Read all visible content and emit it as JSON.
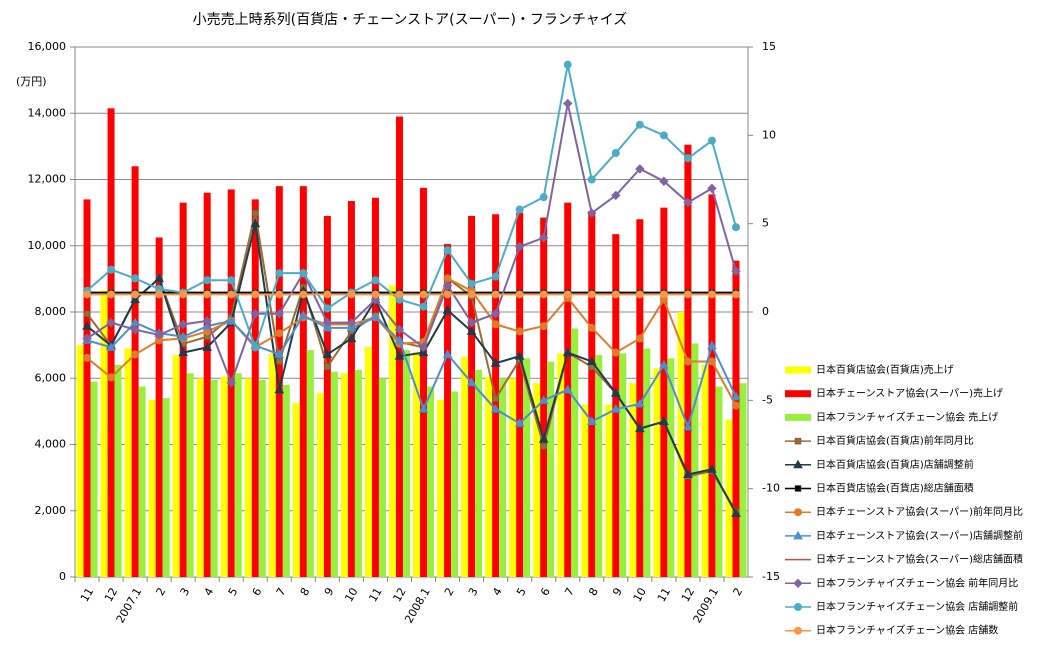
{
  "chart_data": {
    "type": "combo",
    "title": "小売売上時系列(百貨店・チェーンストア(スーパー)・フランチャイズ",
    "y_label": "(万円)",
    "categories": [
      "11",
      "12",
      "2007.1",
      "2",
      "3",
      "4",
      "5",
      "6",
      "7",
      "8",
      "9",
      "10",
      "11",
      "12",
      "2008.1",
      "2",
      "3",
      "4",
      "5",
      "6",
      "7",
      "8",
      "9",
      "10",
      "11",
      "12",
      "2009.1",
      "2"
    ],
    "ylim": [
      0,
      16000
    ],
    "yticks": [
      {
        "value": 0,
        "label": "0"
      },
      {
        "value": 2000,
        "label": "2,000"
      },
      {
        "value": 4000,
        "label": "4,000"
      },
      {
        "value": 6000,
        "label": "6,000"
      },
      {
        "value": 8000,
        "label": "8,000"
      },
      {
        "value": 10000,
        "label": "10,000"
      },
      {
        "value": 12000,
        "label": "12,000"
      },
      {
        "value": 14000,
        "label": "14,000"
      },
      {
        "value": 16000,
        "label": "16,000"
      }
    ],
    "y2lim": [
      -15,
      15
    ],
    "y2ticks": [
      -15,
      -10,
      -5,
      0,
      5,
      10,
      15
    ],
    "grid": true,
    "legend": "right",
    "series": [
      {
        "name": "日本百貨店協会(百貨店)売上げ",
        "type": "bar",
        "color": "#ffff00",
        "values": [
          7000,
          8650,
          6900,
          5350,
          6700,
          6000,
          6050,
          6000,
          6750,
          5250,
          5550,
          6150,
          6950,
          8800,
          6800,
          5350,
          6650,
          6050,
          6000,
          5850,
          6750,
          5200,
          5200,
          5850,
          6300,
          8000,
          6400,
          4750
        ]
      },
      {
        "name": "日本チェーンストア協会(スーパー)売上げ",
        "type": "bar",
        "color": "#ff0000",
        "values": [
          11400,
          14150,
          12400,
          10250,
          11300,
          11600,
          11700,
          11400,
          11800,
          11800,
          10900,
          11350,
          11450,
          13900,
          11750,
          10050,
          10900,
          10950,
          11000,
          10850,
          11300,
          11050,
          10350,
          10800,
          11150,
          13050,
          11550,
          9550
        ]
      },
      {
        "name": "日本フランチャイズチェーン協会 売上げ",
        "type": "bar",
        "color": "#99f03c",
        "values": [
          5900,
          6400,
          5750,
          5400,
          6150,
          5950,
          6150,
          5950,
          5800,
          6850,
          6200,
          6250,
          6000,
          6850,
          5750,
          5600,
          6250,
          6000,
          6600,
          6500,
          7500,
          6700,
          6750,
          6900,
          6600,
          7050,
          5750,
          5850
        ]
      },
      {
        "name": "日本百貨店協会(百貨店)前年同月比",
        "type": "line",
        "axis": "y2",
        "color": "#9c6b30",
        "marker": "square",
        "values": [
          -0.1,
          -1.9,
          0.7,
          1.9,
          -1.8,
          -1.4,
          -0.3,
          5.6,
          -2.8,
          1.4,
          -3.1,
          -1.1,
          -0.2,
          -1.7,
          -2.0,
          1.9,
          0.9,
          -4.9,
          -2.7,
          -7.6,
          -2.3,
          -3.1,
          -4.6,
          -6.6,
          -6.2,
          -9.3,
          -9.0,
          -11.3
        ]
      },
      {
        "name": "日本百貨店協会(百貨店)店舗調整前",
        "type": "line",
        "axis": "y2",
        "color": "#1f3b4d",
        "marker": "triangle",
        "values": [
          -0.8,
          -1.9,
          0.7,
          1.9,
          -2.3,
          -2.0,
          -0.6,
          5.0,
          -4.4,
          1.2,
          -2.4,
          -1.5,
          0.7,
          -2.5,
          -2.3,
          0.1,
          -1.1,
          -2.9,
          -2.5,
          -7.2,
          -2.3,
          -2.8,
          -4.6,
          -6.6,
          -6.2,
          -9.2,
          -8.9,
          -11.4
        ]
      },
      {
        "name": "日本百貨店協会(百貨店)総店舗面積",
        "type": "line",
        "axis": "y2",
        "color": "#000000",
        "marker": "square",
        "values": [
          1.1,
          1.1,
          1.1,
          1.1,
          1.1,
          1.1,
          1.1,
          1.1,
          1.1,
          1.1,
          1.1,
          1.1,
          1.1,
          1.1,
          1.1,
          1.1,
          1.1,
          1.1,
          1.1,
          1.1,
          1.1,
          1.1,
          1.1,
          1.1,
          1.1,
          1.1,
          1.1,
          1.1
        ]
      },
      {
        "name": "日本チェーンストア協会(スーパー)前年同月比",
        "type": "line",
        "axis": "y2",
        "color": "#e07b2a",
        "marker": "circle",
        "values": [
          -2.6,
          -3.7,
          -2.4,
          -1.6,
          -1.5,
          -1.1,
          -0.5,
          -2.0,
          -1.2,
          -0.3,
          -0.7,
          -0.7,
          -0.3,
          -1.8,
          -1.7,
          1.9,
          1.2,
          -0.7,
          -1.1,
          -0.8,
          0.8,
          -0.9,
          -2.3,
          -1.5,
          0.7,
          -2.8,
          -2.8,
          -5.3
        ]
      },
      {
        "name": "日本チェーンストア協会(スーパー)店舗調整前",
        "type": "line",
        "axis": "y2",
        "color": "#4a8fd0",
        "marker": "triangle",
        "values": [
          -1.6,
          -2.0,
          -0.6,
          -1.2,
          -1.4,
          -0.8,
          -0.5,
          -1.9,
          -2.4,
          -0.2,
          -0.9,
          -0.9,
          -0.3,
          -1.6,
          -5.5,
          -2.4,
          -4.0,
          -5.5,
          -6.3,
          -5.0,
          -4.4,
          -6.2,
          -5.5,
          -5.2,
          -3.0,
          -6.5,
          -1.9,
          -4.8
        ]
      },
      {
        "name": "日本チェーンストア協会(スーパー)総店舗面積",
        "type": "line",
        "axis": "y2",
        "color": "#c0504d",
        "marker": "none",
        "values": [
          1.0,
          1.0,
          1.0,
          1.0,
          1.0,
          1.0,
          1.0,
          1.0,
          1.0,
          1.0,
          1.0,
          1.0,
          1.0,
          1.0,
          1.0,
          1.0,
          1.0,
          1.0,
          1.0,
          1.0,
          1.0,
          1.0,
          1.0,
          1.0,
          1.0,
          1.0,
          1.0,
          1.0
        ]
      },
      {
        "name": "日本フランチャイズチェーン協会 前年同月比",
        "type": "line",
        "axis": "y2",
        "color": "#8064a2",
        "marker": "diamond",
        "values": [
          -1.5,
          -0.6,
          -1.0,
          -1.3,
          -0.7,
          -0.5,
          -4.0,
          -0.1,
          -0.1,
          2.2,
          -0.6,
          -0.6,
          0.7,
          -1.0,
          -2.0,
          1.5,
          -0.6,
          -0.1,
          3.7,
          4.2,
          11.8,
          5.6,
          6.6,
          8.1,
          7.4,
          6.2,
          7.0,
          2.3
        ]
      },
      {
        "name": "日本フランチャイズチェーン協会 店舗調整前",
        "type": "line",
        "axis": "y2",
        "color": "#4bacc6",
        "marker": "circle",
        "values": [
          1.2,
          2.4,
          1.9,
          1.3,
          1.1,
          1.8,
          1.8,
          -2.0,
          2.2,
          2.2,
          0.2,
          1.1,
          1.8,
          0.7,
          0.3,
          3.5,
          1.6,
          2.0,
          5.8,
          6.5,
          14.0,
          7.5,
          9.0,
          10.6,
          10.0,
          8.7,
          9.7,
          4.8
        ]
      },
      {
        "name": "日本フランチャイズチェーン協会 店舗数",
        "type": "line",
        "axis": "y2",
        "color": "#f79646",
        "marker": "circle",
        "values": [
          1.0,
          1.0,
          1.0,
          1.0,
          1.0,
          1.0,
          1.0,
          1.0,
          1.0,
          1.0,
          1.0,
          1.0,
          1.0,
          1.0,
          1.0,
          1.0,
          1.0,
          1.0,
          1.0,
          1.0,
          1.0,
          1.0,
          1.0,
          1.0,
          1.0,
          1.0,
          1.0,
          1.0
        ]
      }
    ]
  }
}
